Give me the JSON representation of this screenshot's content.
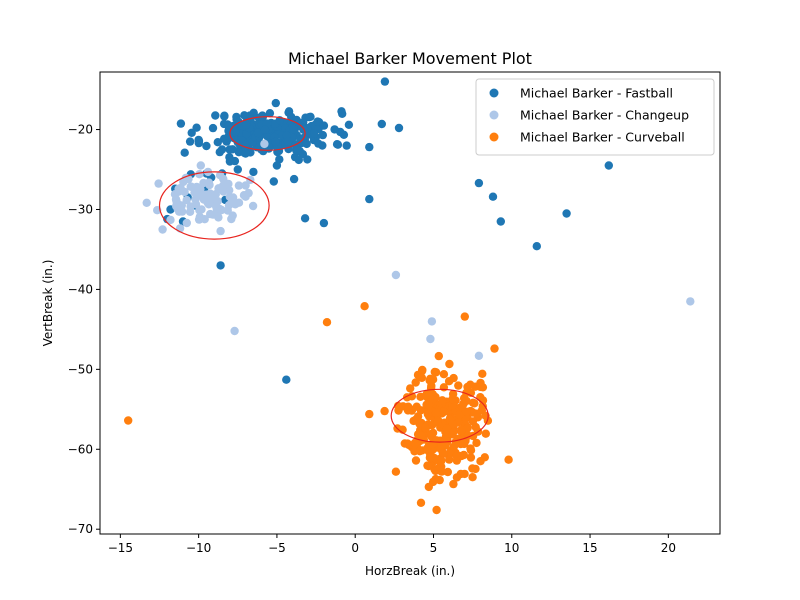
{
  "chart_data": {
    "type": "scatter",
    "title": "Michael Barker Movement Plot",
    "xlabel": "HorzBreak (in.)",
    "ylabel": "VertBreak (in.)",
    "xlim": [
      -16.3,
      23.3
    ],
    "ylim": [
      -70.6,
      -12.8
    ],
    "xticks": [
      -15,
      -10,
      -5,
      0,
      5,
      10,
      15,
      20
    ],
    "yticks": [
      -70,
      -60,
      -50,
      -40,
      -30,
      -20
    ],
    "grid": false,
    "legend_position": "top-right",
    "series": [
      {
        "name": "Michael Barker - Fastball",
        "color": "#1f77b4",
        "clusters": [
          {
            "cx": -5.5,
            "cy": -20.5,
            "sx": 2.0,
            "sy": 1.4,
            "n": 240,
            "seed": 11
          }
        ],
        "points": [
          [
            1.9,
            -14.0
          ],
          [
            -2.0,
            -19.5
          ],
          [
            -0.4,
            -19.4
          ],
          [
            0.9,
            -22.2
          ],
          [
            1.7,
            -19.3
          ],
          [
            2.8,
            -19.8
          ],
          [
            -2.1,
            -22.0
          ],
          [
            -3.6,
            -23.8
          ],
          [
            -5.0,
            -24.5
          ],
          [
            -8.5,
            -22.5
          ],
          [
            -10.0,
            -21.3
          ],
          [
            -9.5,
            -25.5
          ],
          [
            -10.5,
            -25.6
          ],
          [
            -11.5,
            -27.4
          ],
          [
            -10.7,
            -28.5
          ],
          [
            -11.8,
            -30.0
          ],
          [
            -11.0,
            -31.5
          ],
          [
            -12.0,
            -31.2
          ],
          [
            -9.2,
            -26.0
          ],
          [
            -8.5,
            -25.5
          ],
          [
            -7.5,
            -25.0
          ],
          [
            -6.5,
            -25.3
          ],
          [
            -7.0,
            -23.0
          ],
          [
            -6.0,
            -22.5
          ],
          [
            -8.0,
            -24.0
          ],
          [
            -9.0,
            -28.5
          ],
          [
            -8.3,
            -28.8
          ],
          [
            -9.6,
            -27.2
          ],
          [
            -10.2,
            -29.5
          ],
          [
            -3.9,
            -26.2
          ],
          [
            -5.2,
            -26.5
          ],
          [
            -3.2,
            -31.1
          ],
          [
            -2.0,
            -31.7
          ],
          [
            0.9,
            -28.7
          ],
          [
            7.9,
            -26.7
          ],
          [
            8.8,
            -28.4
          ],
          [
            9.3,
            -31.5
          ],
          [
            11.6,
            -34.6
          ],
          [
            13.5,
            -30.5
          ],
          [
            16.2,
            -24.5
          ],
          [
            -8.6,
            -37.0
          ],
          [
            -4.4,
            -51.3
          ]
        ]
      },
      {
        "name": "Michael Barker - Changeup",
        "color": "#aec7e8",
        "clusters": [
          {
            "cx": -9.8,
            "cy": -28.8,
            "sx": 1.3,
            "sy": 1.4,
            "n": 90,
            "seed": 23
          }
        ],
        "points": [
          [
            -12.3,
            -32.5
          ],
          [
            -11.8,
            -31.3
          ],
          [
            -8.6,
            -32.7
          ],
          [
            -7.8,
            -28.5
          ],
          [
            -7.0,
            -28.4
          ],
          [
            -6.7,
            -26.3
          ],
          [
            -7.0,
            -27.0
          ],
          [
            -5.8,
            -21.8
          ],
          [
            -7.7,
            -45.2
          ],
          [
            2.6,
            -38.2
          ],
          [
            4.9,
            -44.0
          ],
          [
            4.8,
            -46.2
          ],
          [
            7.9,
            -48.3
          ],
          [
            21.4,
            -41.5
          ]
        ]
      },
      {
        "name": "Michael Barker - Curveball",
        "color": "#ff7f0e",
        "clusters": [
          {
            "cx": 5.6,
            "cy": -56.6,
            "sx": 1.2,
            "sy": 3.4,
            "n": 260,
            "seed": 37
          }
        ],
        "points": [
          [
            -14.5,
            -56.4
          ],
          [
            -1.8,
            -44.1
          ],
          [
            0.6,
            -42.1
          ],
          [
            0.9,
            -55.6
          ],
          [
            7.0,
            -43.4
          ],
          [
            8.9,
            -47.4
          ],
          [
            9.8,
            -61.3
          ],
          [
            2.7,
            -57.4
          ],
          [
            2.6,
            -62.8
          ],
          [
            4.2,
            -66.7
          ],
          [
            5.2,
            -67.6
          ],
          [
            7.5,
            -63.5
          ],
          [
            8.0,
            -51.7
          ],
          [
            8.0,
            -52.2
          ],
          [
            7.1,
            -55.3
          ]
        ]
      }
    ],
    "ellipses": [
      {
        "cx": -5.6,
        "cy": -20.5,
        "rx": 2.4,
        "ry": 2.1,
        "color": "#e8251f"
      },
      {
        "cx": -9.0,
        "cy": -29.5,
        "rx": 3.5,
        "ry": 4.2,
        "color": "#e8251f"
      },
      {
        "cx": 5.4,
        "cy": -55.8,
        "rx": 3.1,
        "ry": 3.3,
        "color": "#e8251f"
      }
    ]
  }
}
